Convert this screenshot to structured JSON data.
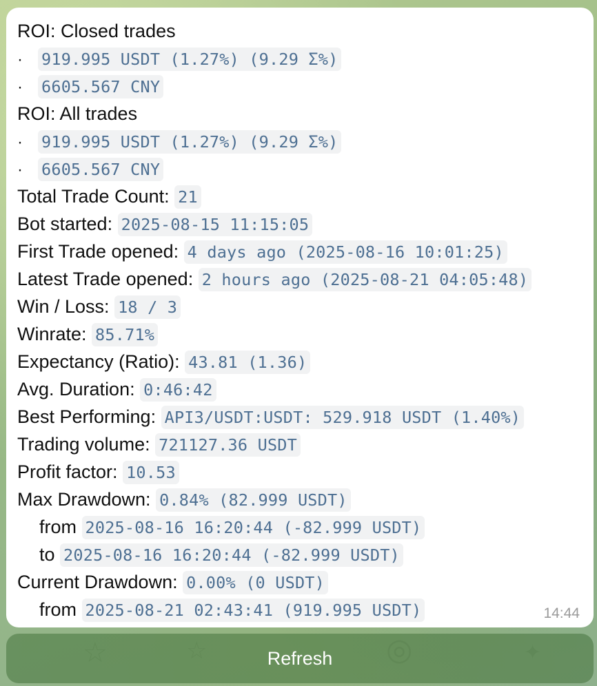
{
  "message": {
    "roi_closed": {
      "label": "ROI:",
      "suffix": " Closed trades",
      "items": [
        "919.995 USDT (1.27%) (9.29 Σ%)",
        "6605.567 CNY"
      ]
    },
    "roi_all": {
      "label": "ROI:",
      "suffix": " All trades",
      "items": [
        "919.995 USDT (1.27%) (9.29 Σ%)",
        "6605.567 CNY"
      ]
    },
    "bullet": "·",
    "stats": [
      {
        "label": "Total Trade Count:",
        "value": "21"
      },
      {
        "label": "Bot started:",
        "value": "2025-08-15 11:15:05"
      },
      {
        "label": "First Trade opened:",
        "value": "4 days ago (2025-08-16 10:01:25)"
      },
      {
        "label": "Latest Trade opened:",
        "value": "2 hours ago (2025-08-21 04:05:48)"
      },
      {
        "label": "Win / Loss:",
        "value": "18 / 3"
      },
      {
        "label": "Winrate:",
        "value": "85.71%"
      },
      {
        "label": "Expectancy (Ratio):",
        "value": "43.81 (1.36)"
      },
      {
        "label": "Avg. Duration:",
        "value": "0:46:42"
      },
      {
        "label": "Best Performing:",
        "value": "API3/USDT:USDT: 529.918 USDT (1.40%)"
      },
      {
        "label": "Trading volume:",
        "value": "721127.36 USDT"
      },
      {
        "label": "Profit factor:",
        "value": "10.53"
      }
    ],
    "max_drawdown": {
      "label": "Max Drawdown:",
      "value": "0.84% (82.999 USDT)",
      "from_label": "from",
      "from_value": "2025-08-16 16:20:44 (-82.999 USDT)",
      "to_label": "to",
      "to_value": "2025-08-16 16:20:44 (-82.999 USDT)"
    },
    "current_drawdown": {
      "label": "Current Drawdown:",
      "value": "0.00% (0 USDT)",
      "from_label": "from",
      "from_value": "2025-08-21 02:43:41 (919.995 USDT)"
    },
    "timestamp": "14:44"
  },
  "refresh_button": {
    "label": "Refresh"
  }
}
